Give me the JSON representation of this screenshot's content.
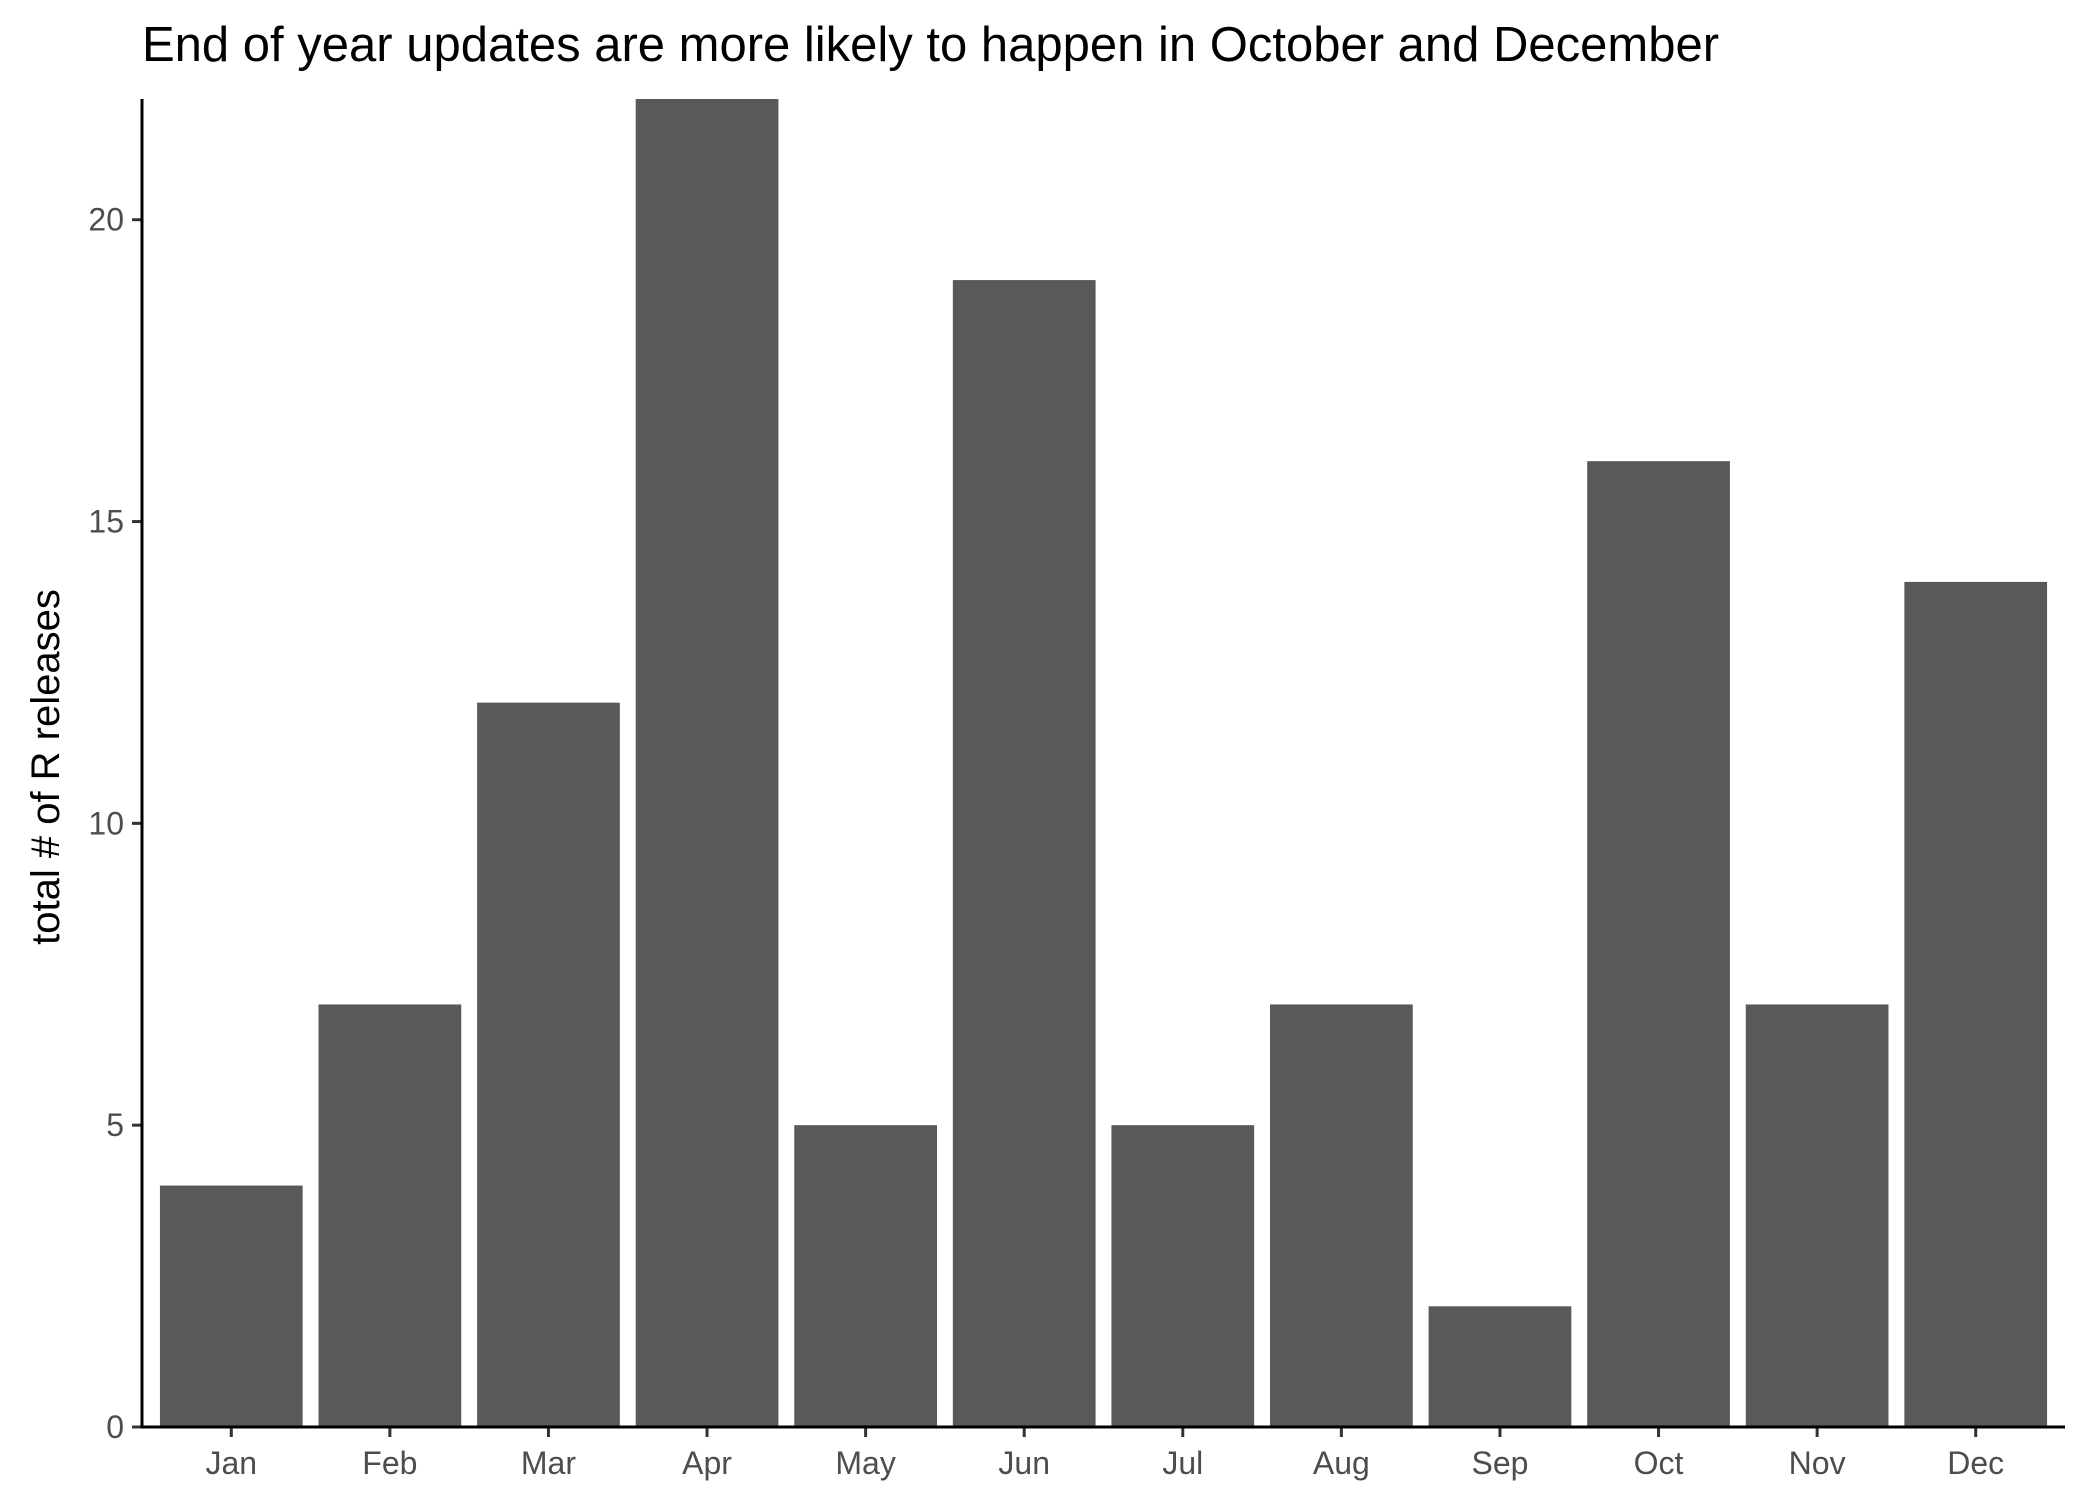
{
  "chart_data": {
    "type": "bar",
    "title": "End of year updates are more likely to happen in October and December",
    "xlabel": "",
    "ylabel": "total # of R releases",
    "categories": [
      "Jan",
      "Feb",
      "Mar",
      "Apr",
      "May",
      "Jun",
      "Jul",
      "Aug",
      "Sep",
      "Oct",
      "Nov",
      "Dec"
    ],
    "values": [
      4,
      7,
      12,
      22,
      5,
      19,
      5,
      7,
      2,
      16,
      7,
      14
    ],
    "ylim": [
      0,
      22
    ],
    "yticks": [
      0,
      5,
      10,
      15,
      20
    ],
    "grid": false,
    "legend": "none",
    "colors": {
      "bar": "#595959",
      "axis": "#000000",
      "tick_label": "#4d4d4d"
    }
  }
}
